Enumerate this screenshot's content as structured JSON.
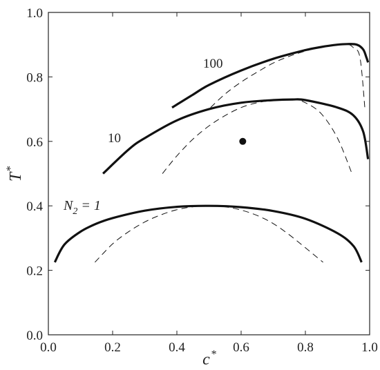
{
  "chart_data": {
    "type": "line",
    "xlabel": "c",
    "xlabel_superscript": "*",
    "ylabel": "T",
    "ylabel_superscript": "*",
    "xlim": [
      0,
      1
    ],
    "ylim": [
      0,
      1
    ],
    "x_ticks": [
      0,
      0.2,
      0.4,
      0.6,
      0.8,
      1
    ],
    "y_ticks": [
      0,
      0.2,
      0.4,
      0.6,
      0.8,
      1
    ],
    "x_tick_labels": [
      "0.0",
      "0.2",
      "0.4",
      "0.6",
      "0.8",
      "1.0"
    ],
    "y_tick_labels": [
      "0.0",
      "0.2",
      "0.4",
      "0.6",
      "0.8",
      "1.0"
    ],
    "grid": false,
    "legend": "none",
    "series": [
      {
        "label": "N₂ = 1",
        "style": "solid",
        "x": [
          0.02,
          0.05,
          0.1,
          0.15,
          0.2,
          0.3,
          0.4,
          0.5,
          0.6,
          0.7,
          0.8,
          0.9,
          0.95,
          0.975
        ],
        "y": [
          0.225,
          0.28,
          0.32,
          0.345,
          0.362,
          0.385,
          0.397,
          0.4,
          0.396,
          0.384,
          0.36,
          0.315,
          0.275,
          0.225
        ]
      },
      {
        "style": "dashed",
        "x": [
          0.145,
          0.2,
          0.25,
          0.3,
          0.35,
          0.4,
          0.45,
          0.5,
          0.55,
          0.6,
          0.65,
          0.7,
          0.75,
          0.8,
          0.855
        ],
        "y": [
          0.225,
          0.282,
          0.32,
          0.35,
          0.372,
          0.388,
          0.397,
          0.4,
          0.397,
          0.387,
          0.37,
          0.345,
          0.31,
          0.27,
          0.225
        ]
      },
      {
        "label": "10",
        "style": "solid",
        "x": [
          0.17,
          0.25,
          0.3,
          0.4,
          0.5,
          0.6,
          0.7,
          0.76,
          0.8,
          0.9,
          0.95,
          0.98,
          0.995
        ],
        "y": [
          0.5,
          0.575,
          0.61,
          0.665,
          0.7,
          0.72,
          0.728,
          0.73,
          0.728,
          0.705,
          0.68,
          0.63,
          0.545
        ]
      },
      {
        "style": "dashed",
        "x": [
          0.355,
          0.4,
          0.45,
          0.5,
          0.55,
          0.6,
          0.65,
          0.7,
          0.76,
          0.8,
          0.85,
          0.9,
          0.945
        ],
        "y": [
          0.5,
          0.555,
          0.607,
          0.648,
          0.68,
          0.705,
          0.72,
          0.727,
          0.73,
          0.72,
          0.685,
          0.61,
          0.5
        ]
      },
      {
        "label": "100",
        "style": "solid",
        "x": [
          0.385,
          0.45,
          0.5,
          0.6,
          0.7,
          0.8,
          0.85,
          0.9,
          0.93,
          0.96,
          0.98,
          0.99,
          0.995
        ],
        "y": [
          0.705,
          0.745,
          0.775,
          0.82,
          0.856,
          0.883,
          0.893,
          0.9,
          0.902,
          0.9,
          0.885,
          0.86,
          0.845
        ]
      },
      {
        "style": "dashed",
        "x": [
          0.505,
          0.55,
          0.6,
          0.65,
          0.7,
          0.75,
          0.8,
          0.85,
          0.9,
          0.93,
          0.95,
          0.97,
          0.985
        ],
        "y": [
          0.705,
          0.747,
          0.784,
          0.815,
          0.843,
          0.864,
          0.88,
          0.893,
          0.9,
          0.902,
          0.89,
          0.86,
          0.705
        ]
      },
      {
        "style": "marker",
        "x": [
          0.605
        ],
        "y": [
          0.6
        ]
      }
    ]
  }
}
